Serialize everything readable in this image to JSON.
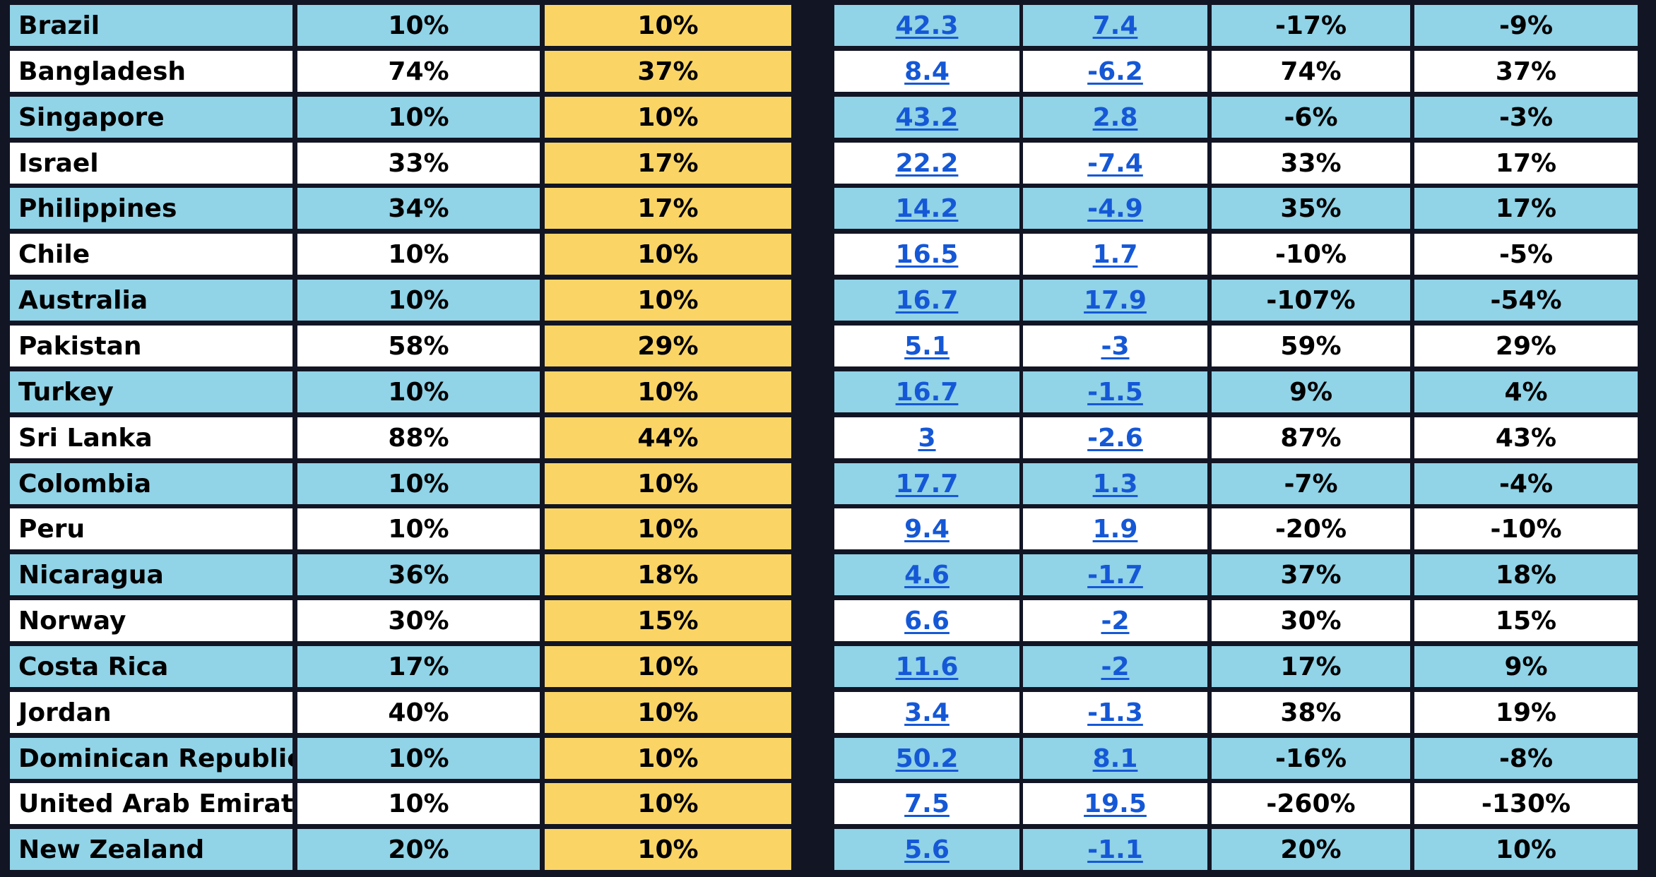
{
  "colors": {
    "background": "#121524",
    "row_blue": "#91d3e7",
    "row_white": "#ffffff",
    "column_yellow": "#fad566",
    "link": "#1558d6"
  },
  "rows": [
    {
      "country": "Brazil",
      "c1": "10%",
      "c2": "10%",
      "c3": "42.3",
      "c4": "7.4",
      "c5": "-17%",
      "c6": "-9%"
    },
    {
      "country": "Bangladesh",
      "c1": "74%",
      "c2": "37%",
      "c3": "8.4",
      "c4": "-6.2",
      "c5": "74%",
      "c6": "37%"
    },
    {
      "country": "Singapore",
      "c1": "10%",
      "c2": "10%",
      "c3": "43.2",
      "c4": "2.8",
      "c5": "-6%",
      "c6": "-3%"
    },
    {
      "country": "Israel",
      "c1": "33%",
      "c2": "17%",
      "c3": "22.2",
      "c4": "-7.4",
      "c5": "33%",
      "c6": "17%"
    },
    {
      "country": "Philippines",
      "c1": "34%",
      "c2": "17%",
      "c3": "14.2",
      "c4": "-4.9",
      "c5": "35%",
      "c6": "17%"
    },
    {
      "country": "Chile",
      "c1": "10%",
      "c2": "10%",
      "c3": "16.5",
      "c4": "1.7",
      "c5": "-10%",
      "c6": "-5%"
    },
    {
      "country": "Australia",
      "c1": "10%",
      "c2": "10%",
      "c3": "16.7",
      "c4": "17.9",
      "c5": "-107%",
      "c6": "-54%"
    },
    {
      "country": "Pakistan",
      "c1": "58%",
      "c2": "29%",
      "c3": "5.1",
      "c4": "-3",
      "c5": "59%",
      "c6": "29%"
    },
    {
      "country": "Turkey",
      "c1": "10%",
      "c2": "10%",
      "c3": "16.7",
      "c4": "-1.5",
      "c5": "9%",
      "c6": "4%"
    },
    {
      "country": "Sri Lanka",
      "c1": "88%",
      "c2": "44%",
      "c3": "3",
      "c4": "-2.6",
      "c5": "87%",
      "c6": "43%"
    },
    {
      "country": "Colombia",
      "c1": "10%",
      "c2": "10%",
      "c3": "17.7",
      "c4": "1.3",
      "c5": "-7%",
      "c6": "-4%"
    },
    {
      "country": "Peru",
      "c1": "10%",
      "c2": "10%",
      "c3": "9.4",
      "c4": "1.9",
      "c5": "-20%",
      "c6": "-10%"
    },
    {
      "country": "Nicaragua",
      "c1": "36%",
      "c2": "18%",
      "c3": "4.6",
      "c4": "-1.7",
      "c5": "37%",
      "c6": "18%"
    },
    {
      "country": "Norway",
      "c1": "30%",
      "c2": "15%",
      "c3": "6.6",
      "c4": "-2",
      "c5": "30%",
      "c6": "15%"
    },
    {
      "country": "Costa Rica",
      "c1": "17%",
      "c2": "10%",
      "c3": "11.6",
      "c4": "-2",
      "c5": "17%",
      "c6": "9%"
    },
    {
      "country": "Jordan",
      "c1": "40%",
      "c2": "10%",
      "c3": "3.4",
      "c4": "-1.3",
      "c5": "38%",
      "c6": "19%"
    },
    {
      "country": "Dominican Republic",
      "c1": "10%",
      "c2": "10%",
      "c3": "50.2",
      "c4": "8.1",
      "c5": "-16%",
      "c6": "-8%"
    },
    {
      "country": "United Arab Emirates",
      "c1": "10%",
      "c2": "10%",
      "c3": "7.5",
      "c4": "19.5",
      "c5": "-260%",
      "c6": "-130%"
    },
    {
      "country": "New Zealand",
      "c1": "20%",
      "c2": "10%",
      "c3": "5.6",
      "c4": "-1.1",
      "c5": "20%",
      "c6": "10%"
    }
  ]
}
